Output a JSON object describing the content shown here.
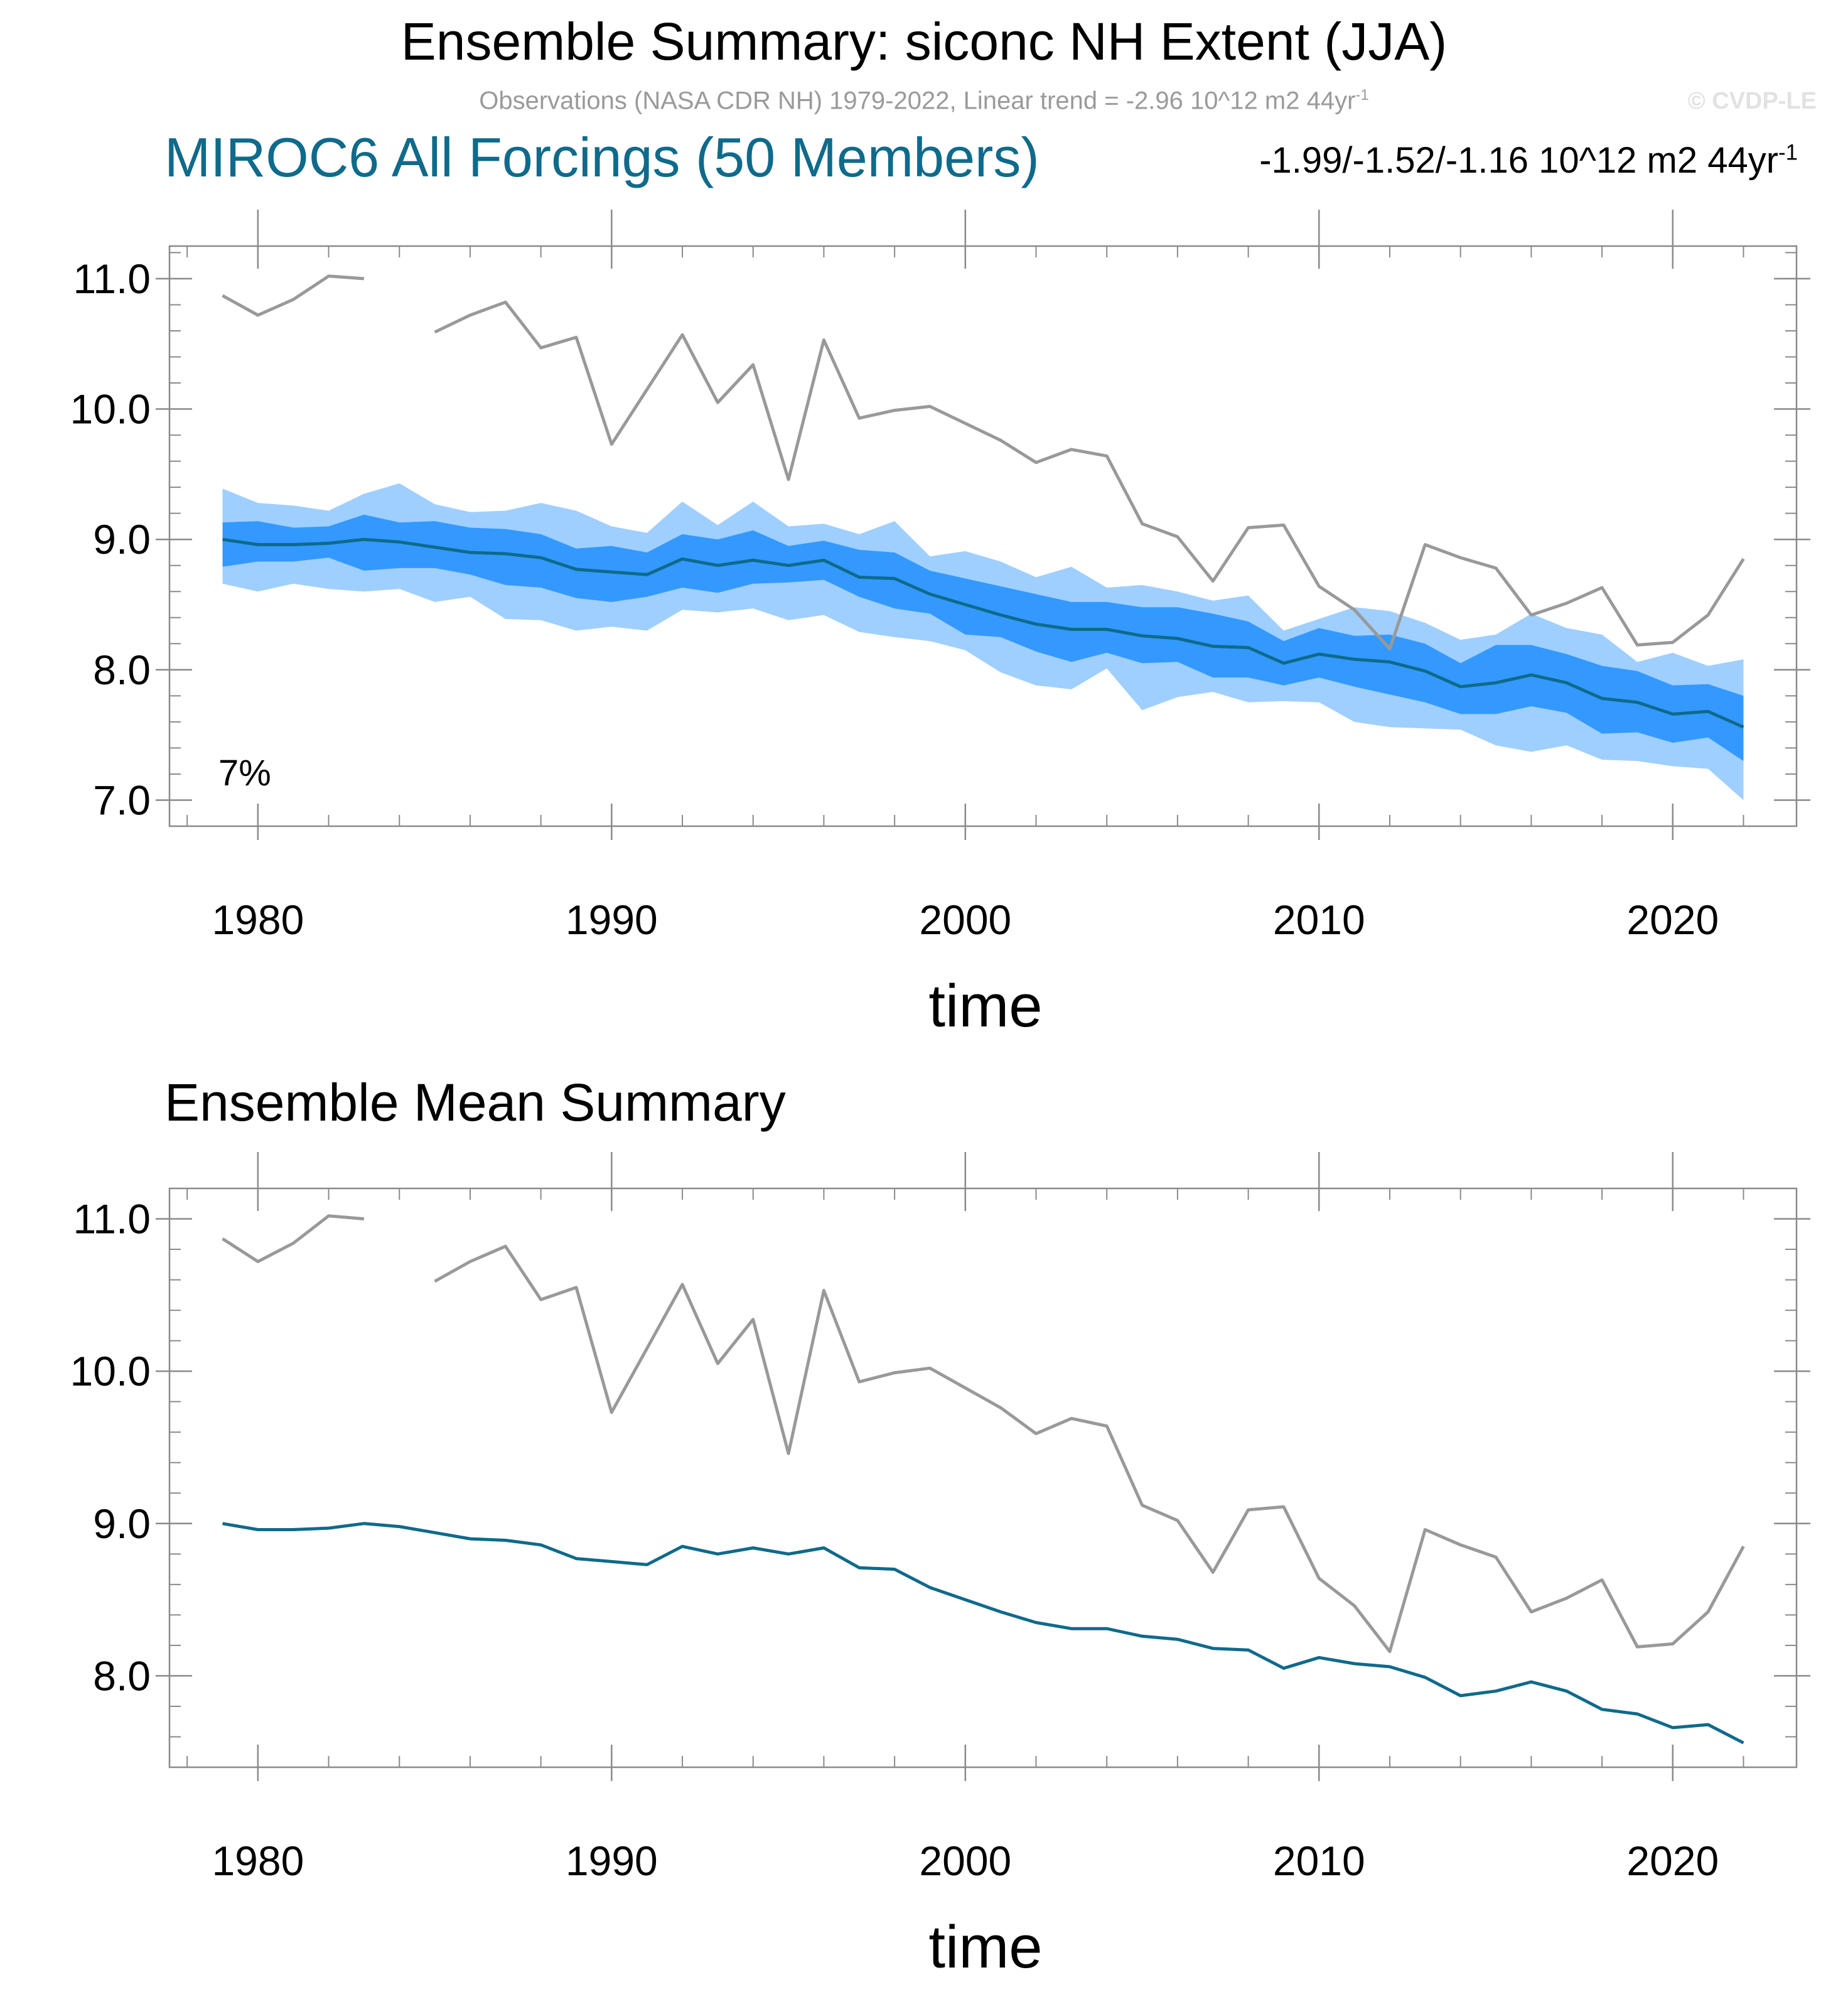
{
  "title": "Ensemble Summary: siconc NH Extent (JJA)",
  "subtitle": {
    "text": "Observations (NASA CDR NH) 1979-2022, Linear trend = -2.96 10^12 m2 44yr",
    "exponent": "-1"
  },
  "watermark": "© CVDP-LE",
  "panel_top": {
    "title": "MIROC6 All Forcings (50 Members)",
    "trend_text": "-1.99/-1.52/-1.16 10^12 m2 44yr",
    "trend_exponent": "-1",
    "percent_label": "7%"
  },
  "panel_bottom": {
    "title": "Ensemble Mean Summary"
  },
  "colors": {
    "observations": "#999999",
    "ensemble_mean": "#0f6a8b",
    "band_inner": "#3399ff",
    "band_outer": "#9fcfff",
    "panel1_title": "#0f6a8b"
  },
  "chart_data": [
    {
      "type": "line",
      "title": "MIROC6 All Forcings (50 Members)",
      "xlabel": "time",
      "ylabel": "",
      "xlim": [
        1977.5,
        2023.5
      ],
      "ylim": [
        6.8,
        11.25
      ],
      "xticks": [
        1980,
        1990,
        2000,
        2010,
        2020
      ],
      "xtick_labels": [
        "1980",
        "1990",
        "2000",
        "2010",
        "2020"
      ],
      "yticks": [
        7.0,
        8.0,
        9.0,
        10.0,
        11.0
      ],
      "ytick_labels": [
        "7.0",
        "8.0",
        "9.0",
        "10.0",
        "11.0"
      ],
      "x": [
        1979,
        1980,
        1981,
        1982,
        1983,
        1984,
        1985,
        1986,
        1987,
        1988,
        1989,
        1990,
        1991,
        1992,
        1993,
        1994,
        1995,
        1996,
        1997,
        1998,
        1999,
        2000,
        2001,
        2002,
        2003,
        2004,
        2005,
        2006,
        2007,
        2008,
        2009,
        2010,
        2011,
        2012,
        2013,
        2014,
        2015,
        2016,
        2017,
        2018,
        2019,
        2020,
        2021,
        2022
      ],
      "series": [
        {
          "name": "Observations (NASA CDR NH)",
          "values": [
            10.87,
            10.72,
            10.84,
            11.02,
            11.0,
            null,
            10.59,
            10.72,
            10.82,
            10.47,
            10.55,
            9.73,
            10.15,
            10.57,
            10.05,
            10.34,
            9.46,
            10.53,
            9.93,
            9.99,
            10.02,
            9.89,
            9.76,
            9.59,
            9.69,
            9.64,
            9.12,
            9.02,
            8.68,
            9.09,
            9.11,
            8.64,
            8.46,
            8.16,
            8.96,
            8.86,
            8.78,
            8.42,
            8.51,
            8.63,
            8.19,
            8.21,
            8.42,
            8.85
          ]
        },
        {
          "name": "Ensemble mean",
          "values": [
            9.0,
            8.96,
            8.96,
            8.97,
            9.0,
            8.98,
            8.94,
            8.9,
            8.89,
            8.86,
            8.77,
            8.75,
            8.73,
            8.85,
            8.8,
            8.84,
            8.8,
            8.84,
            8.71,
            8.7,
            8.58,
            8.5,
            8.42,
            8.35,
            8.31,
            8.31,
            8.26,
            8.24,
            8.18,
            8.17,
            8.05,
            8.12,
            8.08,
            8.06,
            7.99,
            7.87,
            7.9,
            7.96,
            7.9,
            7.78,
            7.75,
            7.66,
            7.68,
            7.56
          ]
        },
        {
          "name": "Inner range (upper)",
          "values": [
            9.13,
            9.14,
            9.09,
            9.1,
            9.19,
            9.13,
            9.14,
            9.09,
            9.08,
            9.04,
            8.93,
            8.95,
            8.9,
            9.04,
            9.0,
            9.07,
            8.95,
            8.99,
            8.92,
            8.9,
            8.76,
            8.7,
            8.64,
            8.58,
            8.52,
            8.52,
            8.48,
            8.48,
            8.43,
            8.37,
            8.22,
            8.32,
            8.26,
            8.27,
            8.2,
            8.05,
            8.19,
            8.19,
            8.12,
            8.03,
            7.99,
            7.88,
            7.89,
            7.8
          ]
        },
        {
          "name": "Inner range (lower)",
          "values": [
            8.79,
            8.83,
            8.83,
            8.86,
            8.76,
            8.78,
            8.78,
            8.73,
            8.65,
            8.63,
            8.55,
            8.52,
            8.56,
            8.63,
            8.59,
            8.66,
            8.67,
            8.69,
            8.56,
            8.47,
            8.43,
            8.27,
            8.25,
            8.14,
            8.06,
            8.13,
            8.05,
            8.06,
            7.94,
            7.94,
            7.88,
            7.94,
            7.87,
            7.81,
            7.75,
            7.66,
            7.66,
            7.72,
            7.67,
            7.51,
            7.52,
            7.44,
            7.48,
            7.3
          ]
        },
        {
          "name": "Full range (upper)",
          "values": [
            9.39,
            9.28,
            9.26,
            9.22,
            9.35,
            9.43,
            9.27,
            9.21,
            9.22,
            9.28,
            9.22,
            9.1,
            9.05,
            9.29,
            9.11,
            9.29,
            9.1,
            9.12,
            9.04,
            9.14,
            8.87,
            8.91,
            8.83,
            8.71,
            8.79,
            8.63,
            8.65,
            8.6,
            8.53,
            8.57,
            8.3,
            8.39,
            8.48,
            8.45,
            8.36,
            8.23,
            8.27,
            8.43,
            8.32,
            8.27,
            8.06,
            8.13,
            8.03,
            8.08
          ]
        },
        {
          "name": "Full range (lower)",
          "values": [
            8.66,
            8.6,
            8.66,
            8.62,
            8.6,
            8.62,
            8.52,
            8.56,
            8.39,
            8.38,
            8.3,
            8.33,
            8.3,
            8.46,
            8.44,
            8.47,
            8.38,
            8.42,
            8.29,
            8.25,
            8.22,
            8.15,
            7.98,
            7.88,
            7.85,
            8.01,
            7.69,
            7.79,
            7.83,
            7.75,
            7.76,
            7.75,
            7.6,
            7.56,
            7.55,
            7.54,
            7.42,
            7.37,
            7.42,
            7.31,
            7.3,
            7.26,
            7.24,
            7.0
          ]
        }
      ]
    },
    {
      "type": "line",
      "title": "Ensemble Mean Summary",
      "xlabel": "time",
      "ylabel": "",
      "xlim": [
        1977.5,
        2023.5
      ],
      "ylim": [
        7.4,
        11.2
      ],
      "xticks": [
        1980,
        1990,
        2000,
        2010,
        2020
      ],
      "xtick_labels": [
        "1980",
        "1990",
        "2000",
        "2010",
        "2020"
      ],
      "yticks": [
        8.0,
        9.0,
        10.0,
        11.0
      ],
      "ytick_labels": [
        "8.0",
        "9.0",
        "10.0",
        "11.0"
      ],
      "x": [
        1979,
        1980,
        1981,
        1982,
        1983,
        1984,
        1985,
        1986,
        1987,
        1988,
        1989,
        1990,
        1991,
        1992,
        1993,
        1994,
        1995,
        1996,
        1997,
        1998,
        1999,
        2000,
        2001,
        2002,
        2003,
        2004,
        2005,
        2006,
        2007,
        2008,
        2009,
        2010,
        2011,
        2012,
        2013,
        2014,
        2015,
        2016,
        2017,
        2018,
        2019,
        2020,
        2021,
        2022
      ],
      "series": [
        {
          "name": "Observations (NASA CDR NH)",
          "values": [
            10.87,
            10.72,
            10.84,
            11.02,
            11.0,
            null,
            10.59,
            10.72,
            10.82,
            10.47,
            10.55,
            9.73,
            10.15,
            10.57,
            10.05,
            10.34,
            9.46,
            10.53,
            9.93,
            9.99,
            10.02,
            9.89,
            9.76,
            9.59,
            9.69,
            9.64,
            9.12,
            9.02,
            8.68,
            9.09,
            9.11,
            8.64,
            8.46,
            8.16,
            8.96,
            8.86,
            8.78,
            8.42,
            8.51,
            8.63,
            8.19,
            8.21,
            8.42,
            8.85
          ]
        },
        {
          "name": "MIROC6 All Forcings ensemble mean",
          "values": [
            9.0,
            8.96,
            8.96,
            8.97,
            9.0,
            8.98,
            8.94,
            8.9,
            8.89,
            8.86,
            8.77,
            8.75,
            8.73,
            8.85,
            8.8,
            8.84,
            8.8,
            8.84,
            8.71,
            8.7,
            8.58,
            8.5,
            8.42,
            8.35,
            8.31,
            8.31,
            8.26,
            8.24,
            8.18,
            8.17,
            8.05,
            8.12,
            8.08,
            8.06,
            7.99,
            7.87,
            7.9,
            7.96,
            7.9,
            7.78,
            7.75,
            7.66,
            7.68,
            7.56
          ]
        }
      ]
    }
  ]
}
